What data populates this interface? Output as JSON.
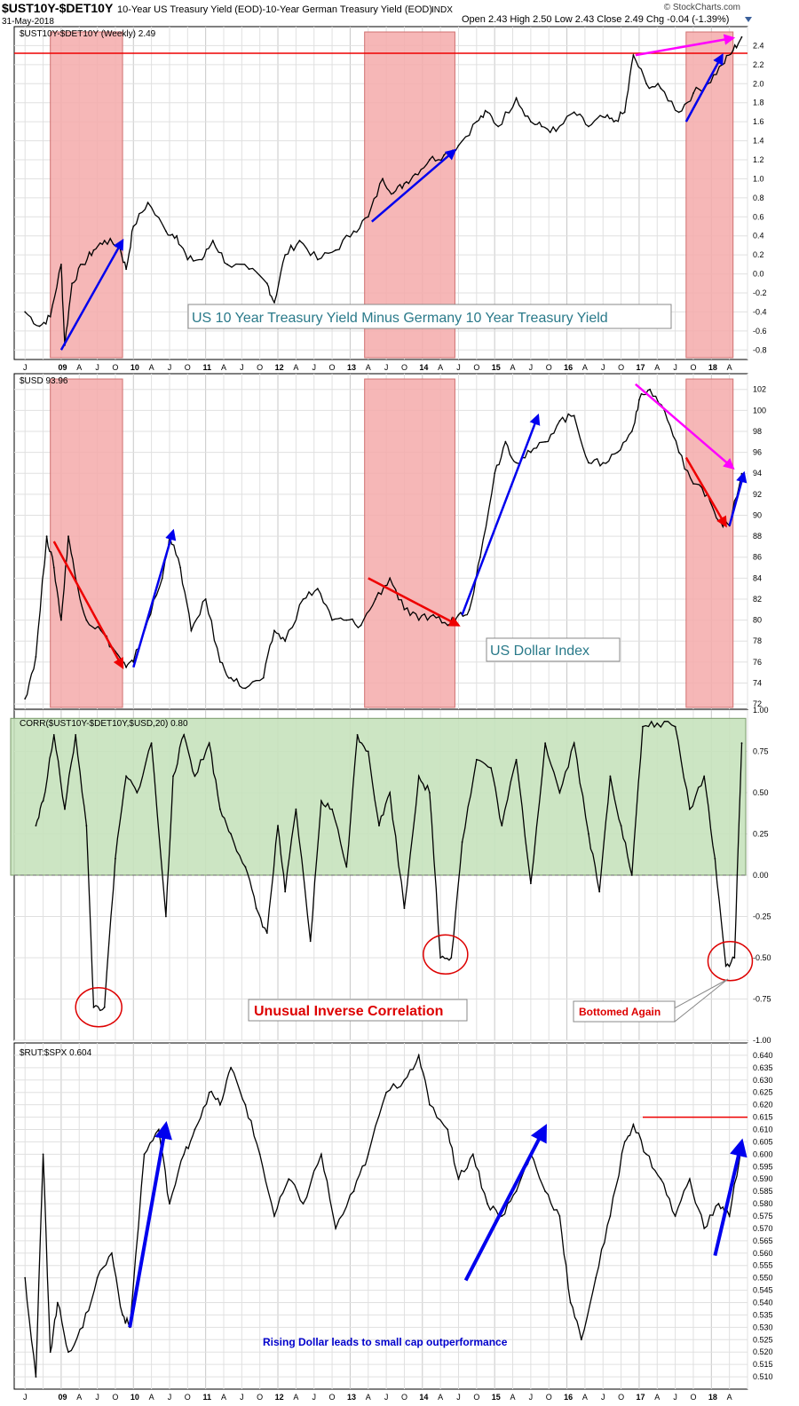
{
  "header": {
    "symbol": "$UST10Y-$DET10Y",
    "description": "10-Year US Treasury Yield (EOD)-10-Year German Treasury Yield (EOD)",
    "suffix": "INDX",
    "date": "31-May-2018",
    "quote": "Open 2.43  High 2.50  Low 2.43  Close 2.49  Chg -0.04 (-1.39%)",
    "source": "© StockCharts.com"
  },
  "colors": {
    "price_line": "#000000",
    "down_segment": "#cc0000",
    "shade_red": "#f4aaaa",
    "shade_green": "#c6e2bd",
    "arrow_blue": "#0000ee",
    "arrow_magenta": "#ff00ff",
    "arrow_red": "#ee0000",
    "note_blue": "#0000cc",
    "note_red": "#dd0000",
    "title_teal": "#2a7a8a"
  },
  "x_axis": {
    "years": [
      "09",
      "10",
      "11",
      "12",
      "13",
      "14",
      "15",
      "16",
      "17",
      "18"
    ],
    "month_letters": [
      "J",
      "A",
      "J",
      "O"
    ],
    "leading_labels": [
      "J"
    ],
    "trailing_labels": [
      "A"
    ]
  },
  "chart_data": [
    {
      "type": "line",
      "label": "$UST10Y-$DET10Y (Weekly) 2.49",
      "annotation": "US 10 Year Treasury Yield Minus Germany 10 Year Treasury Yield",
      "ylim": [
        -0.9,
        2.6
      ],
      "yticks": [
        "2.4",
        "2.2",
        "2.0",
        "1.8",
        "1.6",
        "1.4",
        "1.2",
        "1.0",
        "0.8",
        "0.6",
        "0.4",
        "0.2",
        "0.0",
        "-0.2",
        "-0.4",
        "-0.6",
        "-0.8"
      ],
      "reference_value": 2.32,
      "x": [
        2008.5,
        2008.7,
        2008.85,
        2009.0,
        2009.05,
        2009.15,
        2009.3,
        2009.45,
        2009.6,
        2009.8,
        2009.9,
        2010.0,
        2010.2,
        2010.45,
        2010.6,
        2010.75,
        2010.95,
        2011.1,
        2011.3,
        2011.6,
        2011.85,
        2011.95,
        2012.1,
        2012.3,
        2012.55,
        2012.8,
        2013.05,
        2013.25,
        2013.45,
        2013.6,
        2013.75,
        2013.9,
        2014.1,
        2014.3,
        2014.5,
        2014.75,
        2014.9,
        2015.05,
        2015.3,
        2015.5,
        2015.65,
        2015.85,
        2016.1,
        2016.3,
        2016.5,
        2016.65,
        2016.8,
        2016.92,
        2017.1,
        2017.3,
        2017.55,
        2017.75,
        2017.95,
        2018.15,
        2018.3,
        2018.42
      ],
      "y": [
        -0.4,
        -0.55,
        -0.45,
        0.1,
        -0.75,
        -0.1,
        0.1,
        0.25,
        0.35,
        0.3,
        0.05,
        0.5,
        0.75,
        0.45,
        0.4,
        0.15,
        0.15,
        0.35,
        0.1,
        0.05,
        -0.1,
        -0.3,
        0.2,
        0.35,
        0.15,
        0.25,
        0.45,
        0.6,
        1.0,
        0.85,
        0.95,
        1.05,
        1.2,
        1.25,
        1.35,
        1.6,
        1.7,
        1.55,
        1.85,
        1.6,
        1.55,
        1.5,
        1.7,
        1.55,
        1.65,
        1.6,
        1.7,
        2.3,
        2.0,
        1.95,
        1.7,
        1.9,
        2.0,
        2.2,
        2.35,
        2.49
      ],
      "shaded_periods": [
        [
          2008.85,
          2009.85
        ],
        [
          2013.2,
          2014.45
        ],
        [
          2017.65,
          2018.3
        ]
      ],
      "arrows": [
        {
          "color": "blue",
          "from": [
            2009.0,
            -0.8
          ],
          "to": [
            2009.85,
            0.35
          ]
        },
        {
          "color": "blue",
          "from": [
            2013.3,
            0.55
          ],
          "to": [
            2014.45,
            1.3
          ]
        },
        {
          "color": "blue",
          "from": [
            2017.65,
            1.6
          ],
          "to": [
            2018.15,
            2.3
          ]
        },
        {
          "color": "magenta",
          "from": [
            2016.95,
            2.3
          ],
          "to": [
            2018.3,
            2.48
          ]
        }
      ]
    },
    {
      "type": "line",
      "label": "$USD 93.96",
      "annotation": "US Dollar Index",
      "ylim": [
        71.5,
        103.5
      ],
      "yticks": [
        "102",
        "100",
        "98",
        "96",
        "94",
        "92",
        "90",
        "88",
        "86",
        "84",
        "82",
        "80",
        "78",
        "76",
        "74",
        "72"
      ],
      "x": [
        2008.5,
        2008.65,
        2008.8,
        2008.9,
        2009.0,
        2009.1,
        2009.2,
        2009.35,
        2009.55,
        2009.75,
        2009.9,
        2010.0,
        2010.2,
        2010.4,
        2010.5,
        2010.65,
        2010.8,
        2011.0,
        2011.2,
        2011.35,
        2011.55,
        2011.8,
        2011.95,
        2012.1,
        2012.35,
        2012.55,
        2012.75,
        2012.95,
        2013.15,
        2013.35,
        2013.55,
        2013.75,
        2013.95,
        2014.15,
        2014.35,
        2014.5,
        2014.65,
        2014.8,
        2015.0,
        2015.15,
        2015.3,
        2015.5,
        2015.7,
        2015.9,
        2016.1,
        2016.3,
        2016.5,
        2016.7,
        2016.9,
        2017.0,
        2017.15,
        2017.35,
        2017.55,
        2017.75,
        2017.95,
        2018.1,
        2018.25,
        2018.42
      ],
      "y": [
        72.5,
        76.5,
        88,
        85,
        80,
        88,
        84,
        80,
        79,
        77,
        75.5,
        76,
        80,
        84,
        88,
        85,
        79,
        82,
        76,
        74.5,
        73.5,
        74.5,
        79,
        78,
        82,
        83,
        80,
        80,
        79.5,
        82,
        84,
        81,
        80,
        80.5,
        79.5,
        80.5,
        81,
        86,
        94,
        97,
        95,
        96,
        97,
        99,
        99.5,
        95,
        95,
        96,
        98,
        101,
        102,
        100,
        96,
        93,
        92,
        89.5,
        89,
        93.96
      ],
      "shaded_periods": [
        [
          2008.85,
          2009.85
        ],
        [
          2013.2,
          2014.45
        ],
        [
          2017.65,
          2018.3
        ]
      ],
      "arrows": [
        {
          "color": "red",
          "from": [
            2008.9,
            87.5
          ],
          "to": [
            2009.85,
            75.5
          ]
        },
        {
          "color": "blue",
          "from": [
            2010.0,
            75.5
          ],
          "to": [
            2010.55,
            88.5
          ]
        },
        {
          "color": "red",
          "from": [
            2013.25,
            84
          ],
          "to": [
            2014.5,
            79.5
          ]
        },
        {
          "color": "blue",
          "from": [
            2014.55,
            80.5
          ],
          "to": [
            2015.6,
            99.5
          ]
        },
        {
          "color": "red",
          "from": [
            2017.65,
            95.5
          ],
          "to": [
            2018.2,
            89
          ]
        },
        {
          "color": "magenta",
          "from": [
            2016.95,
            102.5
          ],
          "to": [
            2018.3,
            94.5
          ]
        },
        {
          "color": "blue",
          "from": [
            2018.25,
            89
          ],
          "to": [
            2018.45,
            94
          ]
        }
      ]
    },
    {
      "type": "line",
      "label": "CORR($UST10Y-$DET10Y,$USD,20) 0.80",
      "ylim": [
        -1.0,
        1.0
      ],
      "yticks": [
        "1.00",
        "0.75",
        "0.50",
        "0.25",
        "0.00",
        "-0.25",
        "-0.50",
        "-0.75",
        "-1.00"
      ],
      "x": [
        2008.65,
        2008.75,
        2008.9,
        2009.05,
        2009.2,
        2009.35,
        2009.45,
        2009.6,
        2009.75,
        2009.9,
        2010.05,
        2010.25,
        2010.45,
        2010.55,
        2010.7,
        2010.85,
        2011.05,
        2011.2,
        2011.35,
        2011.55,
        2011.7,
        2011.85,
        2012.0,
        2012.1,
        2012.25,
        2012.45,
        2012.6,
        2012.75,
        2012.95,
        2013.1,
        2013.25,
        2013.4,
        2013.55,
        2013.75,
        2013.95,
        2014.1,
        2014.25,
        2014.4,
        2014.55,
        2014.75,
        2014.95,
        2015.1,
        2015.3,
        2015.5,
        2015.7,
        2015.9,
        2016.1,
        2016.3,
        2016.45,
        2016.6,
        2016.75,
        2016.9,
        2017.05,
        2017.25,
        2017.5,
        2017.7,
        2017.9,
        2018.05,
        2018.2,
        2018.32,
        2018.42
      ],
      "y": [
        0.3,
        0.45,
        0.85,
        0.4,
        0.85,
        0.3,
        -0.8,
        -0.8,
        0.1,
        0.6,
        0.5,
        0.8,
        -0.25,
        0.6,
        0.85,
        0.6,
        0.8,
        0.4,
        0.25,
        0.05,
        -0.2,
        -0.35,
        0.3,
        -0.1,
        0.4,
        -0.4,
        0.45,
        0.4,
        0.05,
        0.85,
        0.75,
        0.3,
        0.5,
        -0.2,
        0.6,
        0.5,
        -0.5,
        -0.5,
        0.2,
        0.7,
        0.65,
        0.3,
        0.7,
        -0.05,
        0.8,
        0.5,
        0.8,
        0.25,
        -0.1,
        0.6,
        0.3,
        0.0,
        0.9,
        0.92,
        0.9,
        0.4,
        0.6,
        0.1,
        -0.55,
        -0.5,
        0.8
      ],
      "shaded_band": [
        0.0,
        0.95
      ],
      "note": "Unusual Inverse Correlation",
      "note2": "Bottomed Again"
    },
    {
      "type": "line",
      "label": "$RUT:$SPX 0.604",
      "annotation": "Rising Dollar leads to small cap outperformance",
      "ylim": [
        0.505,
        0.645
      ],
      "yticks": [
        "0.640",
        "0.635",
        "0.630",
        "0.625",
        "0.620",
        "0.615",
        "0.610",
        "0.605",
        "0.600",
        "0.595",
        "0.590",
        "0.585",
        "0.580",
        "0.575",
        "0.570",
        "0.565",
        "0.560",
        "0.555",
        "0.550",
        "0.545",
        "0.540",
        "0.535",
        "0.530",
        "0.525",
        "0.520",
        "0.515",
        "0.510"
      ],
      "reference_value": 0.615,
      "x": [
        2008.5,
        2008.65,
        2008.75,
        2008.85,
        2008.95,
        2009.1,
        2009.3,
        2009.5,
        2009.7,
        2009.85,
        2009.95,
        2010.15,
        2010.35,
        2010.5,
        2010.7,
        2010.85,
        2011.05,
        2011.2,
        2011.35,
        2011.55,
        2011.75,
        2011.95,
        2012.15,
        2012.35,
        2012.6,
        2012.8,
        2013.05,
        2013.25,
        2013.5,
        2013.75,
        2013.95,
        2014.1,
        2014.35,
        2014.5,
        2014.7,
        2014.9,
        2015.1,
        2015.3,
        2015.5,
        2015.7,
        2015.9,
        2016.05,
        2016.2,
        2016.4,
        2016.6,
        2016.8,
        2016.92,
        2017.1,
        2017.3,
        2017.5,
        2017.7,
        2017.9,
        2018.1,
        2018.25,
        2018.42
      ],
      "y": [
        0.55,
        0.51,
        0.6,
        0.52,
        0.54,
        0.52,
        0.53,
        0.55,
        0.56,
        0.535,
        0.53,
        0.6,
        0.61,
        0.58,
        0.6,
        0.61,
        0.625,
        0.62,
        0.635,
        0.62,
        0.6,
        0.575,
        0.59,
        0.58,
        0.6,
        0.57,
        0.585,
        0.6,
        0.625,
        0.63,
        0.64,
        0.62,
        0.61,
        0.59,
        0.6,
        0.58,
        0.575,
        0.585,
        0.6,
        0.585,
        0.575,
        0.54,
        0.525,
        0.55,
        0.575,
        0.605,
        0.612,
        0.6,
        0.59,
        0.575,
        0.59,
        0.57,
        0.58,
        0.575,
        0.604
      ],
      "arrows": [
        {
          "color": "blue",
          "from": [
            2009.95,
            0.53
          ],
          "to": [
            2010.45,
            0.612
          ]
        },
        {
          "color": "blue",
          "from": [
            2014.6,
            0.549
          ],
          "to": [
            2015.7,
            0.611
          ]
        },
        {
          "color": "blue",
          "from": [
            2018.05,
            0.559
          ],
          "to": [
            2018.42,
            0.605
          ]
        }
      ]
    }
  ]
}
